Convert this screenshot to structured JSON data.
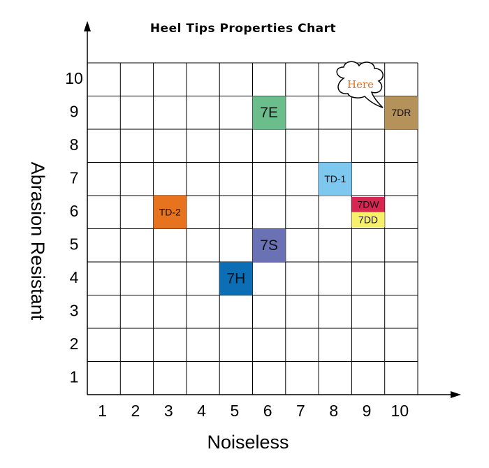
{
  "chart_data": {
    "type": "grid",
    "title": "Heel Tips Properties Chart",
    "xlabel": "Noiseless",
    "ylabel": "Abrasion Resistant",
    "xlim": [
      0.5,
      10.5
    ],
    "ylim": [
      0.5,
      10.5
    ],
    "xticks": [
      1,
      2,
      3,
      4,
      5,
      6,
      7,
      8,
      9,
      10
    ],
    "yticks": [
      1,
      2,
      3,
      4,
      5,
      6,
      7,
      8,
      9,
      10
    ],
    "points": [
      {
        "name": "7E",
        "x": 6,
        "y": 9,
        "color": "#6cbd8c"
      },
      {
        "name": "7DR",
        "x": 10,
        "y": 9,
        "color": "#b5925a"
      },
      {
        "name": "TD-1",
        "x": 8,
        "y": 7,
        "color": "#7ec8ef"
      },
      {
        "name": "7DW",
        "x": 9,
        "y": 6,
        "color": "#d72651"
      },
      {
        "name": "7DD",
        "x": 9,
        "y": 6,
        "color": "#f7f06b"
      },
      {
        "name": "TD-2",
        "x": 3,
        "y": 6,
        "color": "#e8731e"
      },
      {
        "name": "7S",
        "x": 6,
        "y": 5,
        "color": "#6a72b5"
      },
      {
        "name": "7H",
        "x": 5,
        "y": 4,
        "color": "#0c6fb5"
      }
    ],
    "annotation": "Here"
  }
}
